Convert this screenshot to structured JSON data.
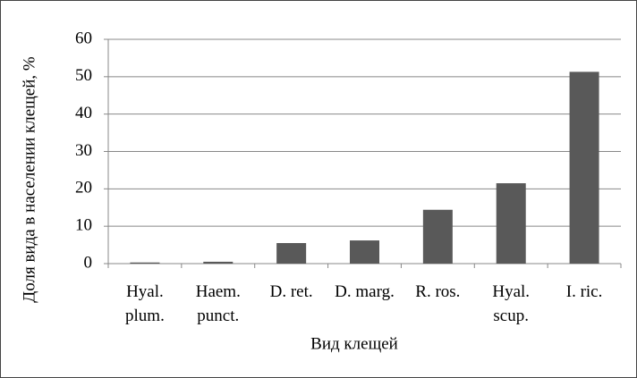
{
  "chart_data": {
    "type": "bar",
    "x_label": "Вид клещей",
    "y_label": "Доля вида в населении клещей, %",
    "categories": [
      "Hyal.\nplum.",
      "Haem.\npunct.",
      "D. ret.",
      "D. marg.",
      "R. ros.",
      "Hyal.\nscup.",
      "I. ric."
    ],
    "values": [
      0.3,
      0.5,
      5.5,
      6.2,
      14.4,
      21.5,
      51.3
    ],
    "color": "#595959",
    "ylim": [
      0,
      60
    ],
    "yticks": [
      0,
      10,
      20,
      30,
      40,
      50,
      60
    ],
    "grid": true
  }
}
